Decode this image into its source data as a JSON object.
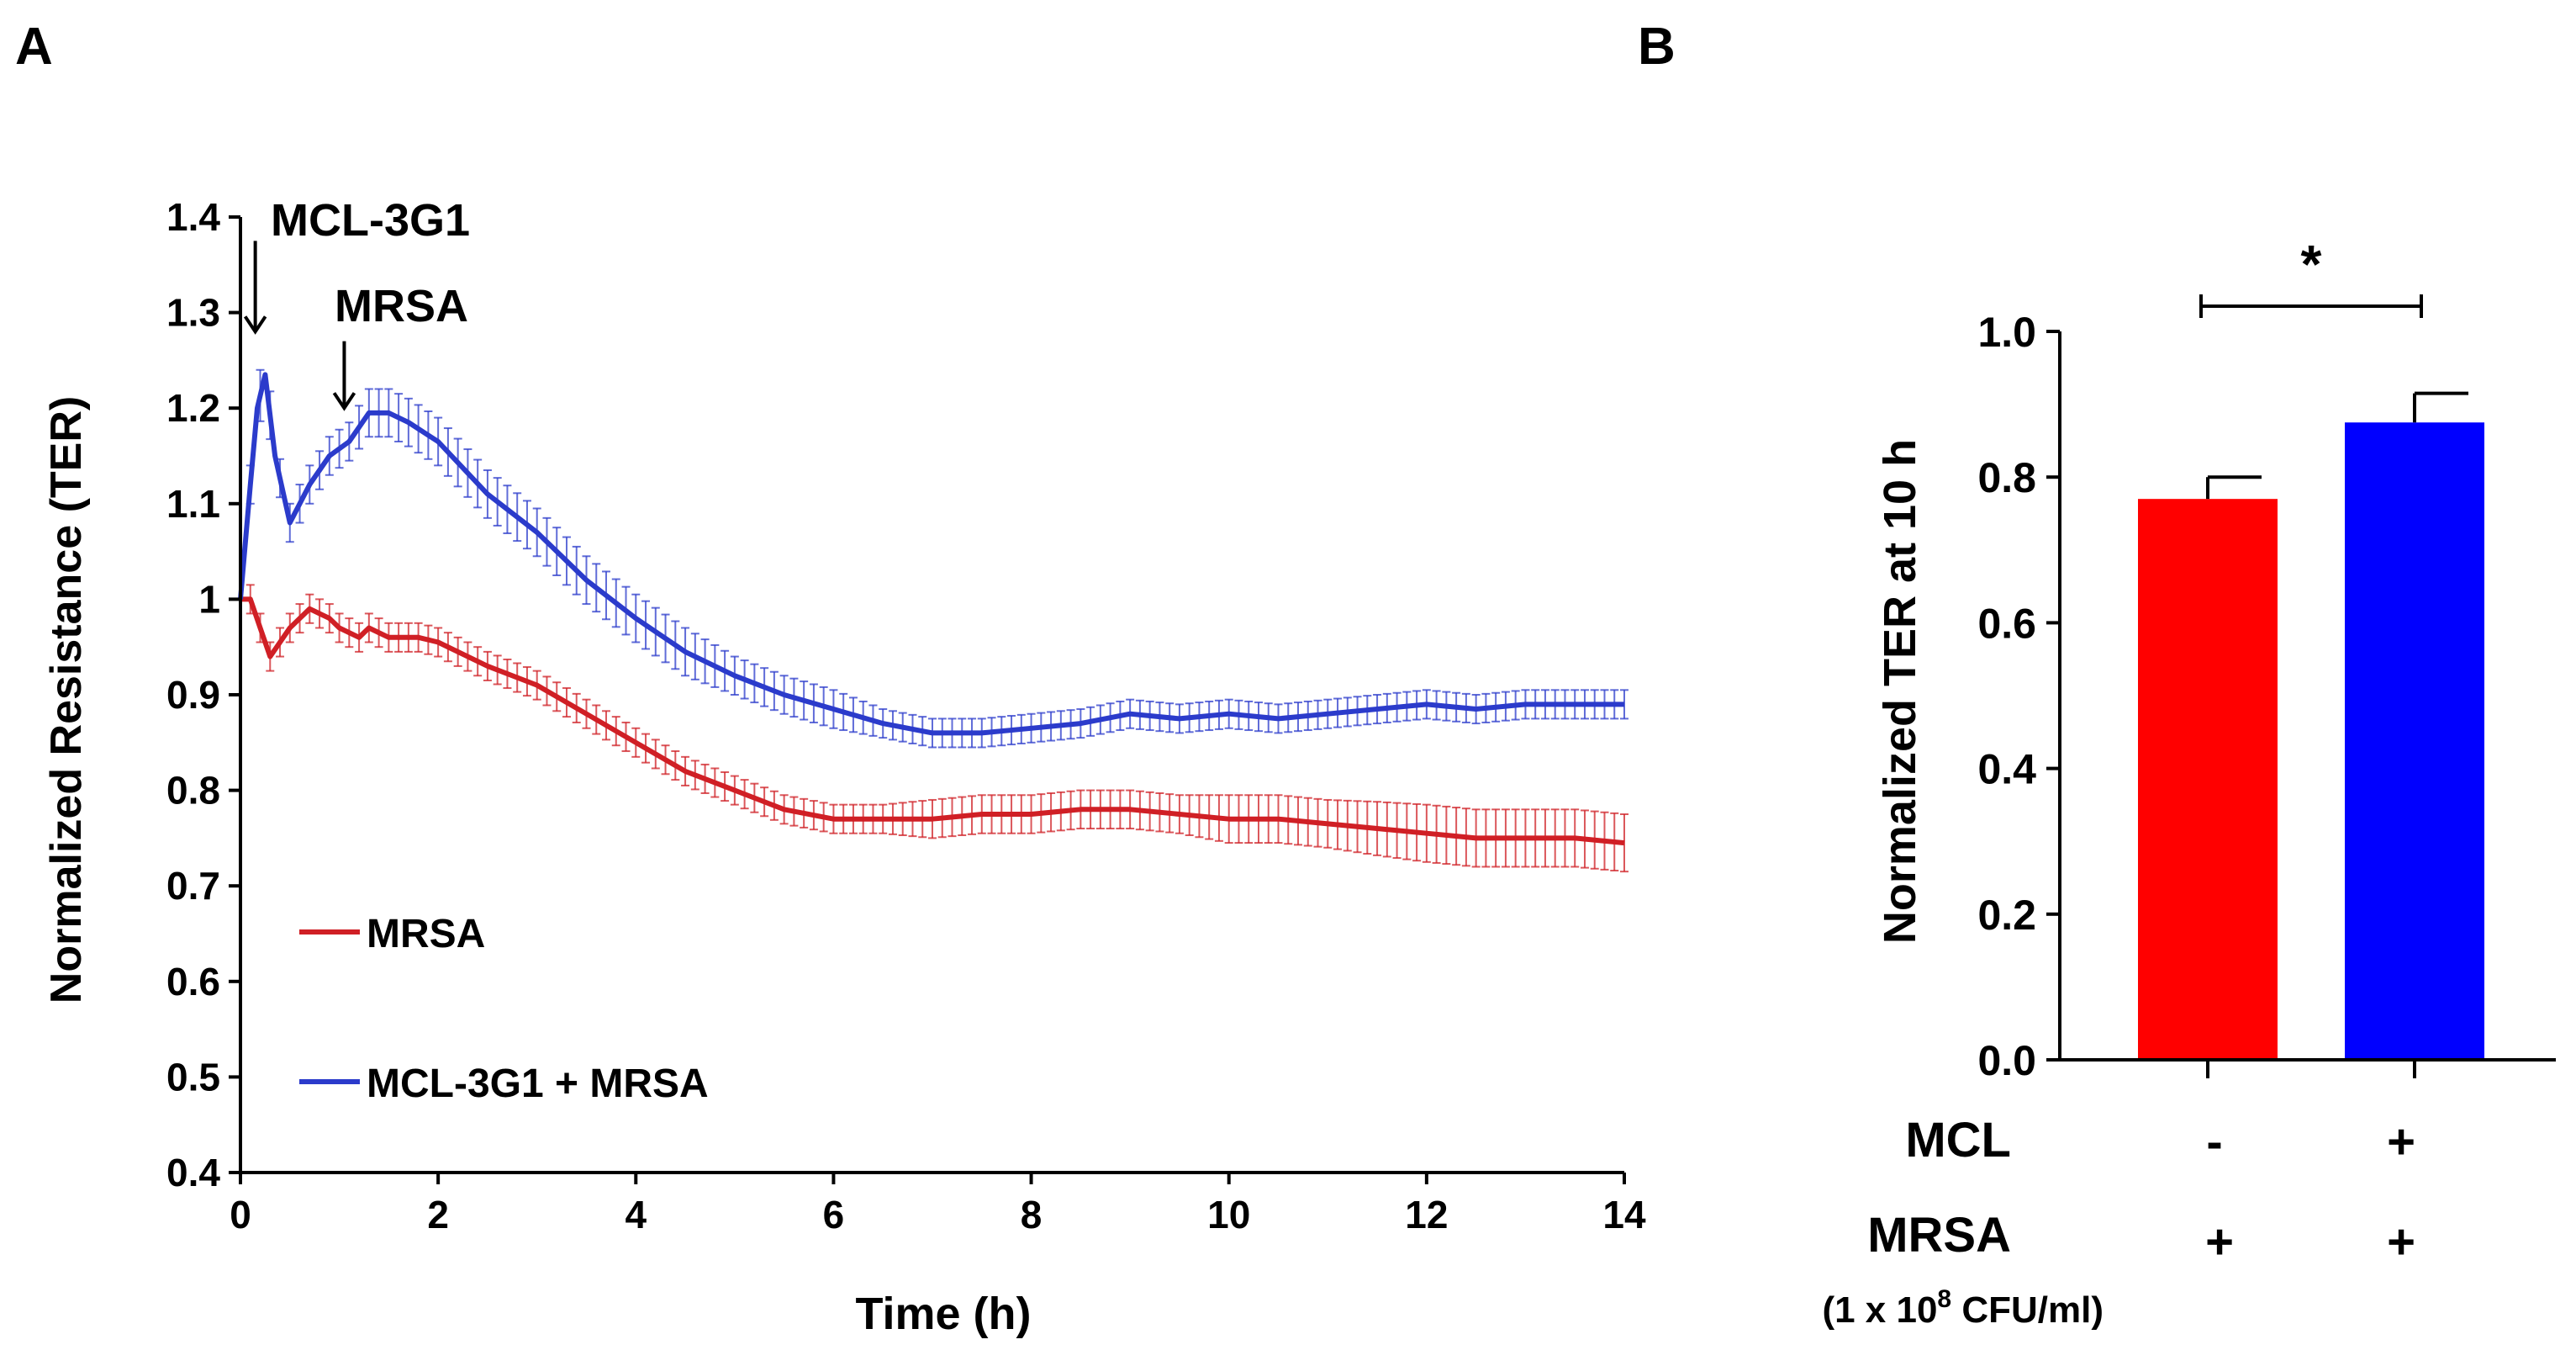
{
  "panels": {
    "A": {
      "label": "A"
    },
    "B": {
      "label": "B"
    }
  },
  "chart_data": [
    {
      "id": "A",
      "type": "line",
      "title": "",
      "xlabel": "Time (h)",
      "ylabel": "Normalized Resistance (TER)",
      "xlim": [
        0,
        14
      ],
      "ylim": [
        0.4,
        1.4
      ],
      "x_ticks": [
        0,
        2,
        4,
        6,
        8,
        10,
        12,
        14
      ],
      "y_ticks": [
        0.4,
        0.5,
        0.6,
        0.7,
        0.8,
        0.9,
        1,
        1.1,
        1.2,
        1.3,
        1.4
      ],
      "y_tick_labels": [
        "0.4",
        "0.5",
        "0.6",
        "0.7",
        "0.8",
        "0.9",
        "1",
        "1.1",
        "1.2",
        "1.3",
        "1.4"
      ],
      "grid": false,
      "legend": "bottom-left",
      "annotations": [
        {
          "text": "MCL-3G1",
          "arrow_x": 0.15,
          "arrow_from_y": 1.375,
          "arrow_to_y": 1.28
        },
        {
          "text": "MRSA",
          "arrow_x": 1.05,
          "arrow_from_y": 1.27,
          "arrow_to_y": 1.2
        }
      ],
      "series": [
        {
          "name": "MRSA",
          "color": "#d01f25",
          "x": [
            0,
            0.1,
            0.2,
            0.3,
            0.5,
            0.7,
            0.9,
            1.0,
            1.2,
            1.3,
            1.5,
            1.8,
            2.0,
            2.5,
            3.0,
            3.5,
            4.0,
            4.5,
            5.0,
            5.5,
            6.0,
            6.5,
            7.0,
            7.5,
            8.0,
            8.5,
            9.0,
            9.5,
            10.0,
            10.5,
            11.0,
            11.5,
            12.0,
            12.5,
            13.0,
            13.5,
            14.0
          ],
          "y": [
            1.0,
            1.0,
            0.97,
            0.94,
            0.97,
            0.99,
            0.98,
            0.97,
            0.96,
            0.97,
            0.96,
            0.96,
            0.955,
            0.93,
            0.91,
            0.88,
            0.85,
            0.82,
            0.8,
            0.78,
            0.77,
            0.77,
            0.77,
            0.775,
            0.775,
            0.78,
            0.78,
            0.775,
            0.77,
            0.77,
            0.765,
            0.76,
            0.755,
            0.75,
            0.75,
            0.75,
            0.745
          ],
          "err": [
            0.01,
            0.015,
            0.015,
            0.015,
            0.015,
            0.015,
            0.015,
            0.015,
            0.015,
            0.015,
            0.015,
            0.015,
            0.015,
            0.015,
            0.015,
            0.015,
            0.015,
            0.015,
            0.015,
            0.015,
            0.015,
            0.015,
            0.02,
            0.02,
            0.02,
            0.02,
            0.02,
            0.02,
            0.025,
            0.025,
            0.025,
            0.028,
            0.03,
            0.03,
            0.03,
            0.03,
            0.03
          ]
        },
        {
          "name": "MCL-3G1 + MRSA",
          "color": "#2b3bcb",
          "x": [
            0,
            0.1,
            0.17,
            0.25,
            0.35,
            0.5,
            0.7,
            0.9,
            1.1,
            1.3,
            1.5,
            1.7,
            2.0,
            2.5,
            3.0,
            3.5,
            4.0,
            4.5,
            5.0,
            5.5,
            6.0,
            6.5,
            7.0,
            7.5,
            8.0,
            8.5,
            9.0,
            9.5,
            10.0,
            10.5,
            11.0,
            11.5,
            12.0,
            12.5,
            13.0,
            13.5,
            14.0
          ],
          "y": [
            1.0,
            1.12,
            1.2,
            1.235,
            1.15,
            1.08,
            1.12,
            1.15,
            1.165,
            1.195,
            1.195,
            1.185,
            1.165,
            1.11,
            1.07,
            1.02,
            0.98,
            0.945,
            0.92,
            0.9,
            0.885,
            0.87,
            0.86,
            0.86,
            0.865,
            0.87,
            0.88,
            0.875,
            0.88,
            0.875,
            0.88,
            0.885,
            0.89,
            0.885,
            0.89,
            0.89,
            0.89
          ],
          "err": [
            0.01,
            0.02,
            0.025,
            0.03,
            0.02,
            0.02,
            0.02,
            0.02,
            0.02,
            0.025,
            0.025,
            0.025,
            0.025,
            0.025,
            0.025,
            0.025,
            0.025,
            0.025,
            0.02,
            0.02,
            0.02,
            0.015,
            0.015,
            0.015,
            0.015,
            0.015,
            0.015,
            0.015,
            0.015,
            0.015,
            0.015,
            0.015,
            0.015,
            0.015,
            0.015,
            0.015,
            0.015
          ]
        }
      ]
    },
    {
      "id": "B",
      "type": "bar",
      "title": "",
      "xlabel": "",
      "ylabel": "Normalized TER at 10 h",
      "ylim": [
        0.0,
        1.0
      ],
      "y_ticks": [
        0.0,
        0.2,
        0.4,
        0.6,
        0.8,
        1.0
      ],
      "y_tick_labels": [
        "0.0",
        "0.2",
        "0.4",
        "0.6",
        "0.8",
        "1.0"
      ],
      "categories": [
        "MRSA",
        "MCL + MRSA"
      ],
      "values": [
        0.77,
        0.875
      ],
      "errors": [
        0.03,
        0.04
      ],
      "colors": [
        "#ff0000",
        "#0000ff"
      ],
      "significance": {
        "text": "*",
        "between": [
          0,
          1
        ]
      },
      "condition_rows": [
        {
          "label": "MCL",
          "sublabel": "",
          "values": [
            "-",
            "+"
          ]
        },
        {
          "label": "MRSA",
          "sublabel": "(1 x 10",
          "sublabel_sup": "8",
          "sublabel_tail": " CFU/ml)",
          "values": [
            "+",
            "+"
          ]
        }
      ]
    }
  ]
}
